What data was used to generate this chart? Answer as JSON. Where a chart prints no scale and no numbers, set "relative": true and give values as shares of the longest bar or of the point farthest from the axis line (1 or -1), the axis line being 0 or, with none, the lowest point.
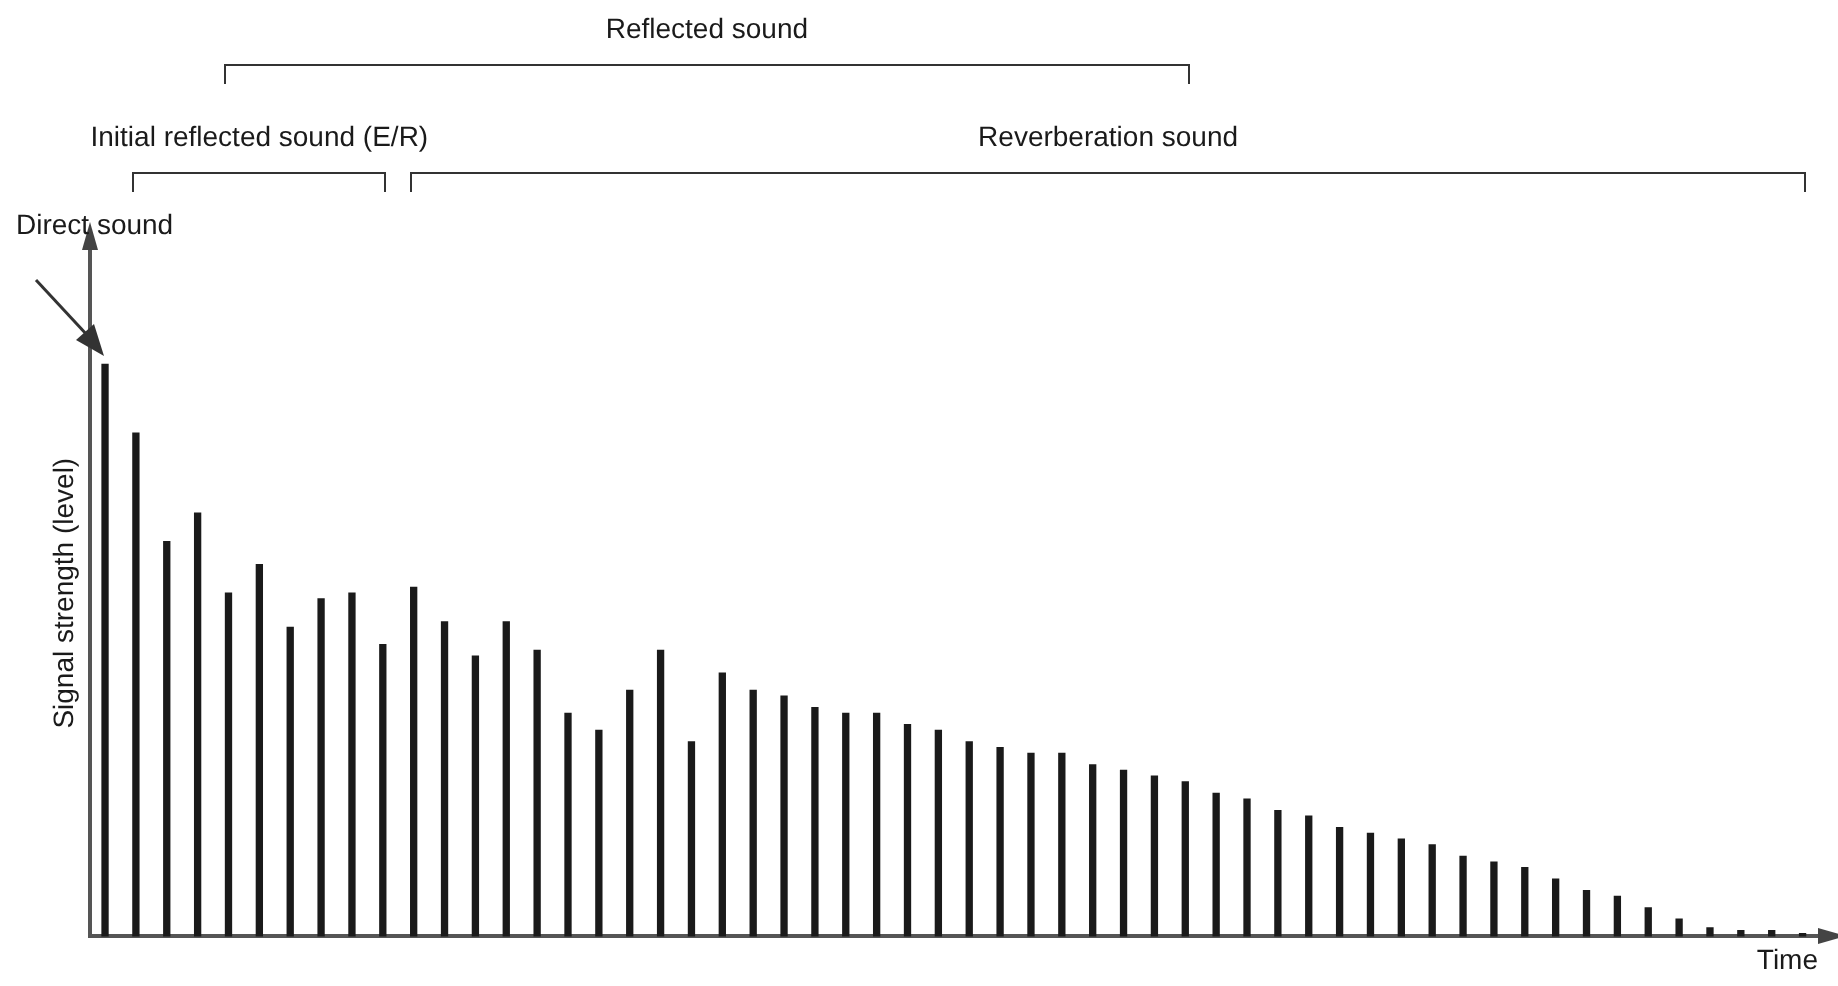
{
  "chart_data": {
    "type": "bar",
    "relative": true,
    "xlabel": "Time",
    "ylabel": "Signal strength (level)",
    "annotations": [
      "Direct sound",
      "Reflected sound",
      "Initial reflected sound (E/R)",
      "Reverberation sound"
    ],
    "categories": [
      null,
      null,
      null,
      null,
      null,
      null,
      null,
      null,
      null,
      null,
      null,
      null,
      null,
      null,
      null,
      null,
      null,
      null,
      null,
      null,
      null,
      null,
      null,
      null,
      null,
      null,
      null,
      null,
      null,
      null,
      null,
      null,
      null,
      null,
      null,
      null,
      null,
      null,
      null,
      null,
      null,
      null,
      null,
      null,
      null,
      null,
      null,
      null,
      null,
      null,
      null,
      null,
      null,
      null,
      null,
      null
    ],
    "series": [
      {
        "color": "#1a1a1a",
        "values": [
          1,
          0.88,
          0.69,
          0.74,
          0.6,
          0.65,
          0.54,
          0.59,
          0.6,
          0.51,
          0.61,
          0.55,
          0.49,
          0.55,
          0.5,
          0.39,
          0.36,
          0.43,
          0.5,
          0.34,
          0.46,
          0.43,
          0.42,
          0.4,
          0.39,
          0.39,
          0.37,
          0.36,
          0.34,
          0.33,
          0.32,
          0.32,
          0.3,
          0.29,
          0.28,
          0.27,
          0.25,
          0.24,
          0.22,
          0.21,
          0.19,
          0.18,
          0.17,
          0.16,
          0.14,
          0.13,
          0.12,
          0.1,
          0.08,
          0.07,
          0.05,
          0.03,
          0.015,
          0.01,
          0.01,
          0.005
        ]
      }
    ]
  }
}
